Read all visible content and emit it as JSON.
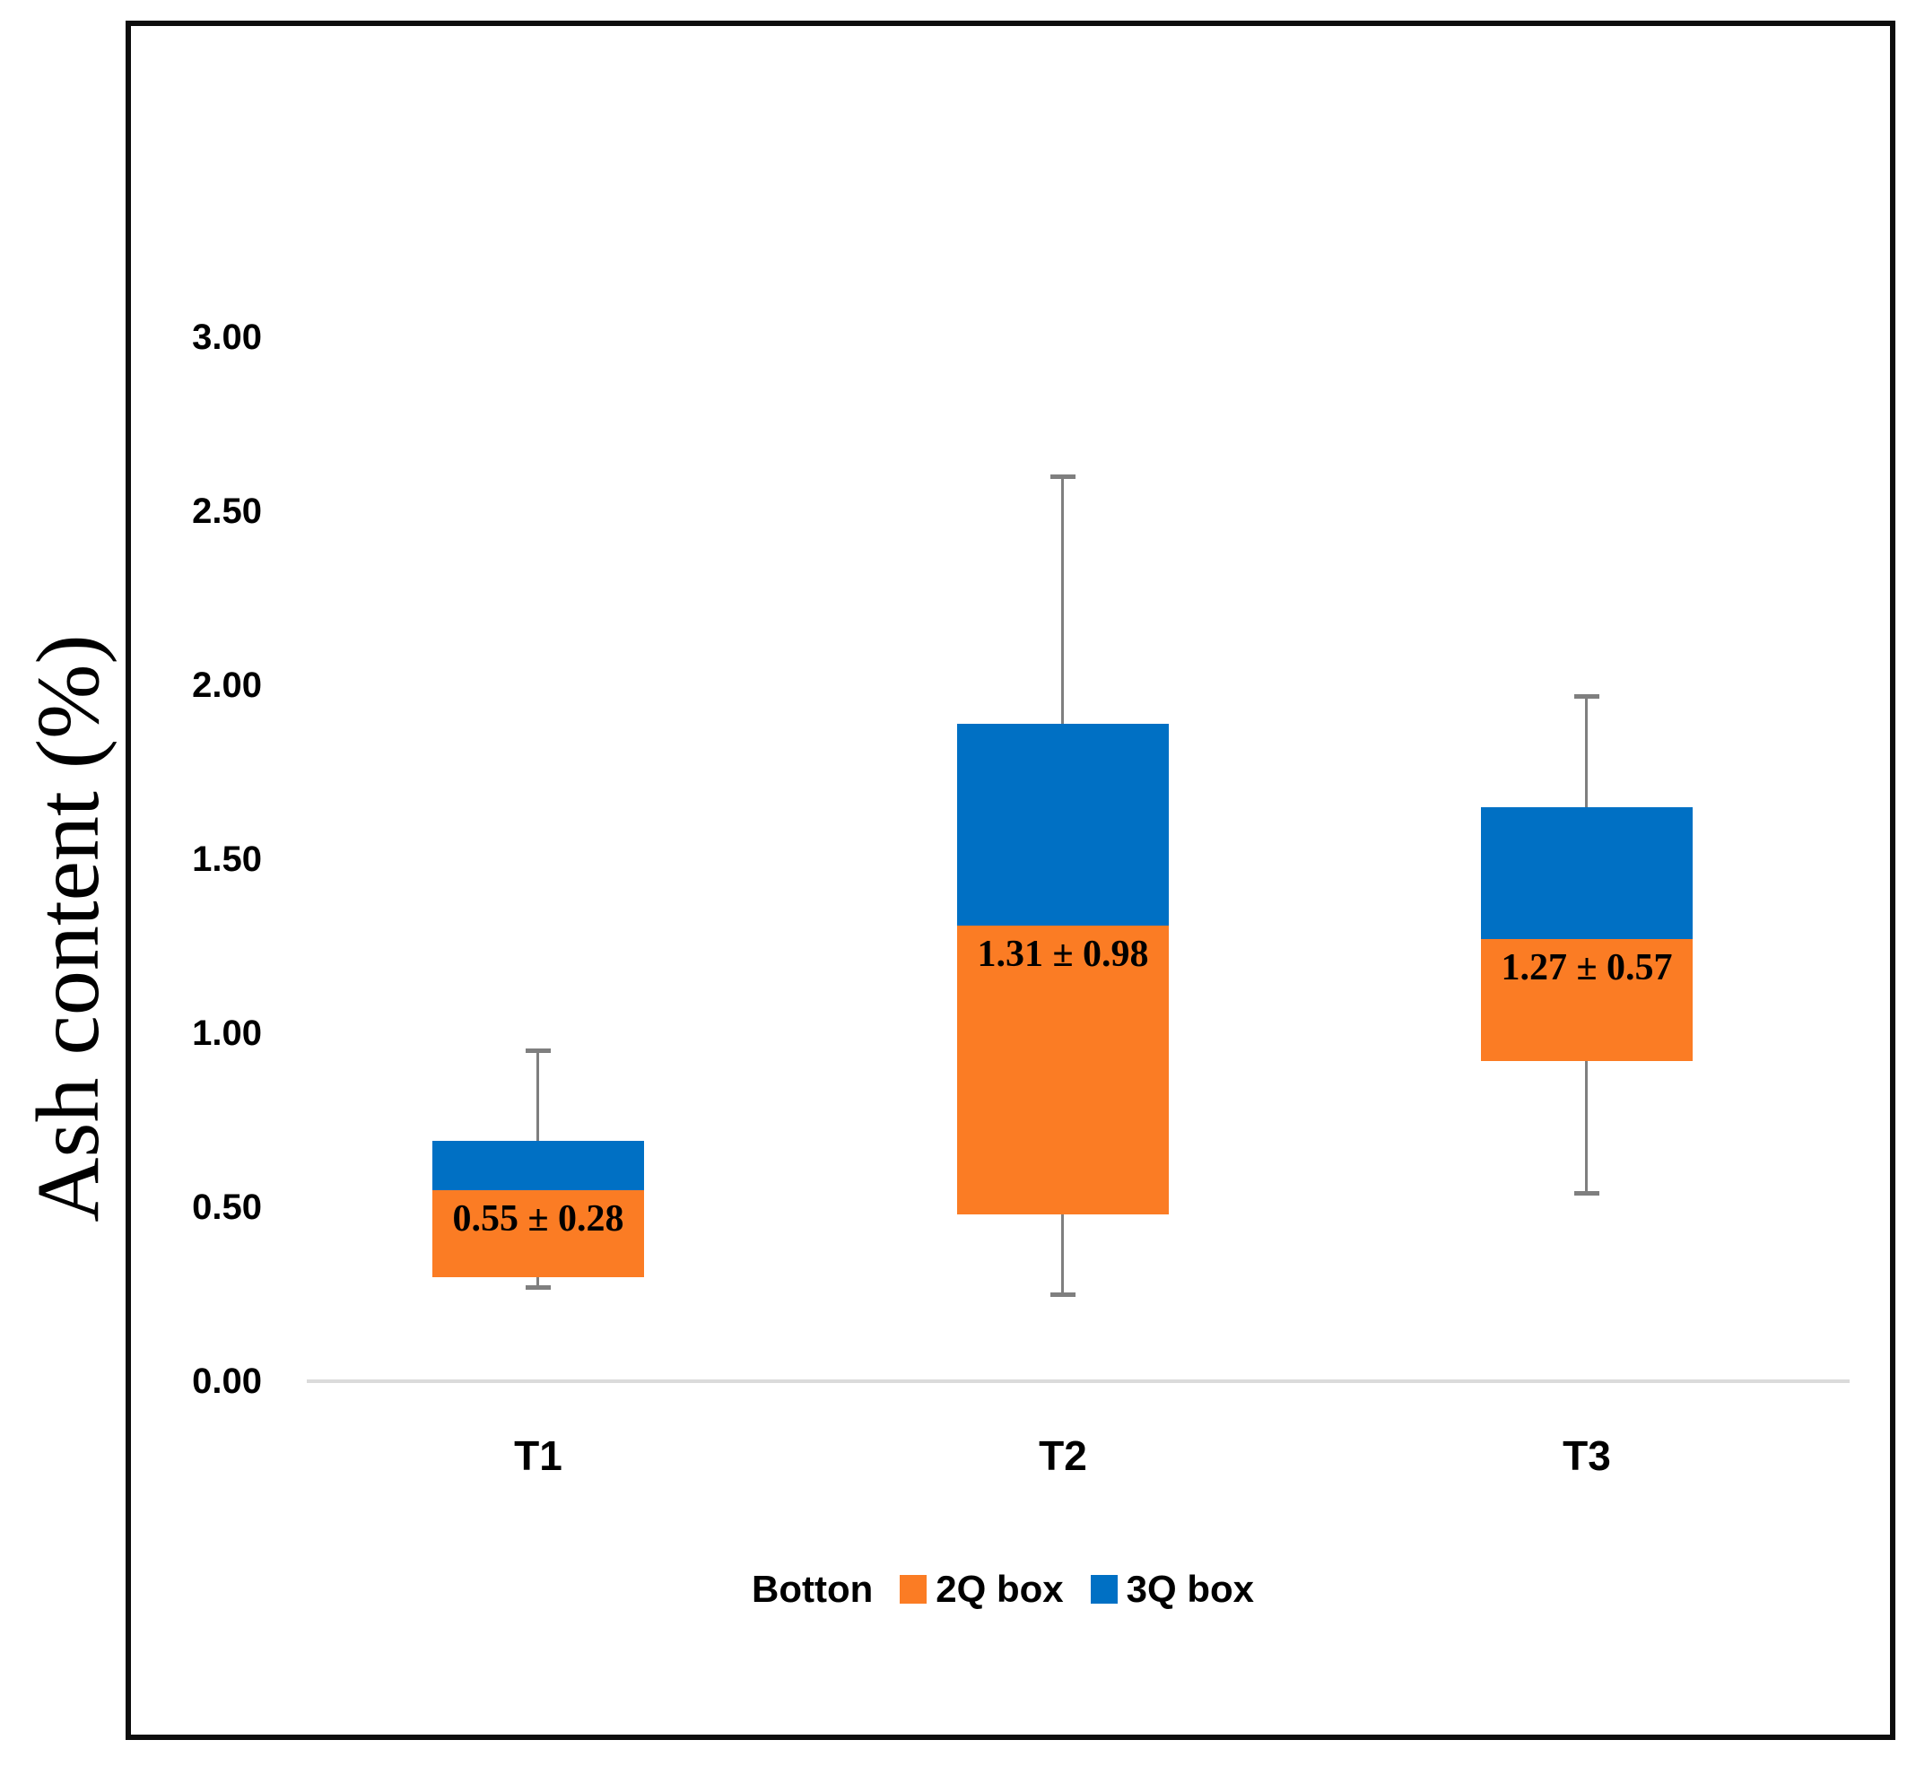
{
  "chart_data": {
    "type": "boxplot",
    "title": "",
    "ylabel": "Ash content (%)",
    "xlabel": "",
    "categories": [
      "T1",
      "T2",
      "T3"
    ],
    "yticks": [
      {
        "label": "0.00",
        "value": 0.0
      },
      {
        "label": "0.50",
        "value": 0.5
      },
      {
        "label": "1.00",
        "value": 1.0
      },
      {
        "label": "1.50",
        "value": 1.5
      },
      {
        "label": "2.00",
        "value": 2.0
      },
      {
        "label": "2.50",
        "value": 2.5
      },
      {
        "label": "3.00",
        "value": 3.0
      }
    ],
    "ylim": [
      0.0,
      3.9
    ],
    "grid": false,
    "legend": {
      "position": "bottom",
      "items": [
        {
          "label": "Botton",
          "color": null
        },
        {
          "label": "2Q box",
          "color": "#FB7C24"
        },
        {
          "label": "3Q box",
          "color": "#0070C4"
        }
      ]
    },
    "boxes": [
      {
        "category": "T1",
        "whisker_low": 0.27,
        "q1": 0.3,
        "median": 0.55,
        "q3": 0.69,
        "whisker_high": 0.95,
        "data_label": "0.55 ± 0.28"
      },
      {
        "category": "T2",
        "whisker_low": 0.25,
        "q1": 0.48,
        "median": 1.31,
        "q3": 1.89,
        "whisker_high": 2.6,
        "data_label": "1.31 ± 0.98"
      },
      {
        "category": "T3",
        "whisker_low": 0.54,
        "q1": 0.92,
        "median": 1.27,
        "q3": 1.65,
        "whisker_high": 1.97,
        "data_label": "1.27 ± 0.57"
      }
    ],
    "colors": {
      "q2_box": "#FB7C24",
      "q3_box": "#0070C4",
      "whisker": "#7F7F7F",
      "baseline": "#DBDBDB",
      "frame": "#0D0D0D",
      "text": "#000000"
    }
  }
}
